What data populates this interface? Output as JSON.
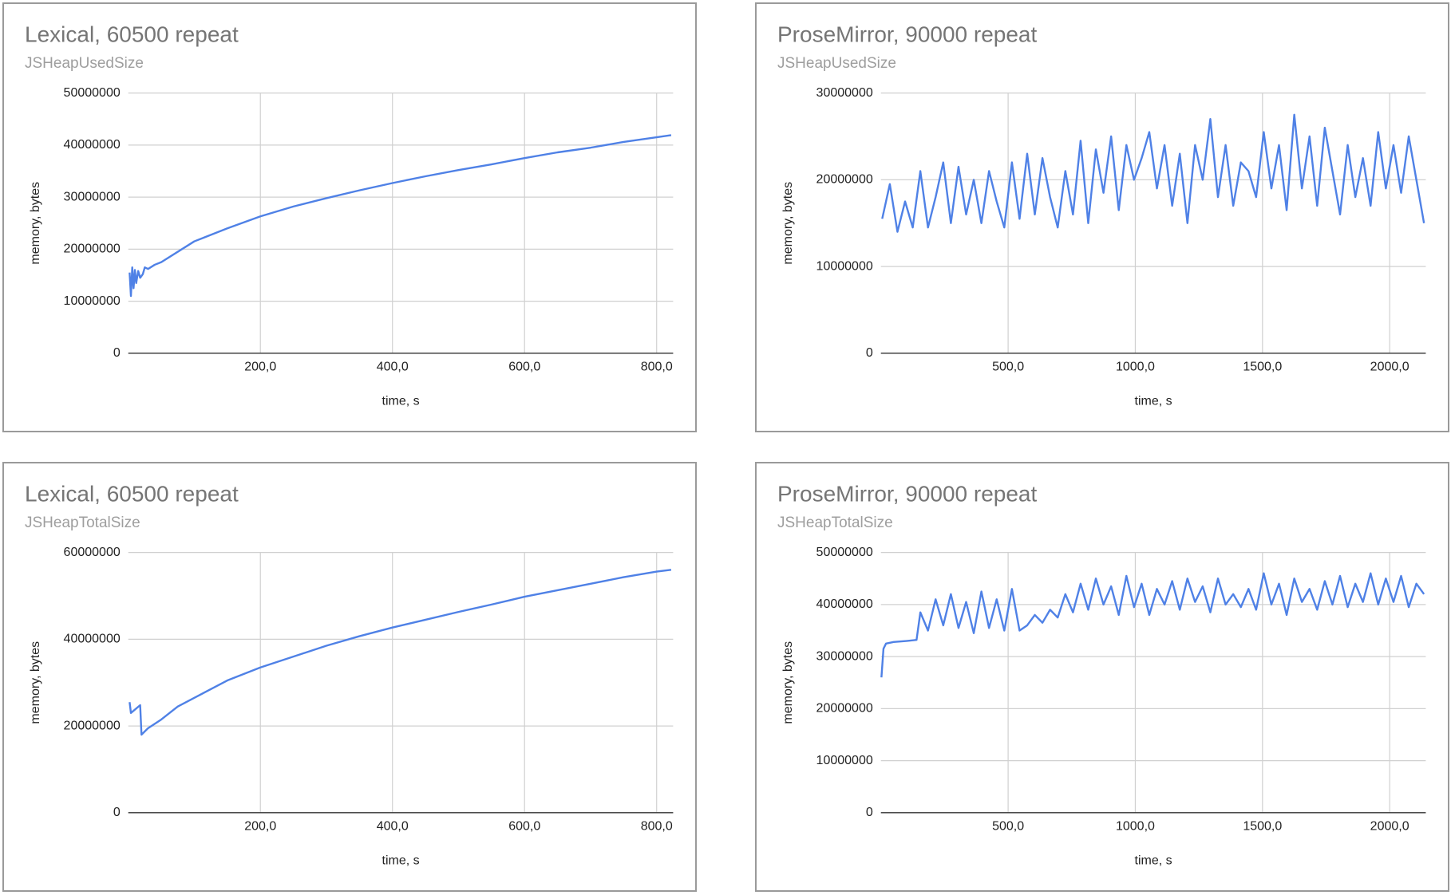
{
  "chart_data": [
    {
      "type": "line",
      "title": "Lexical, 60500 repeat",
      "subtitle": "JSHeapUsedSize",
      "xlabel": "time, s",
      "ylabel": "memory, bytes",
      "color": "#4f81e6",
      "xlim": [
        0,
        825
      ],
      "ylim": [
        0,
        50000000
      ],
      "xticks": [
        {
          "value": 200,
          "label": "200,0"
        },
        {
          "value": 400,
          "label": "400,0"
        },
        {
          "value": 600,
          "label": "600,0"
        },
        {
          "value": 800,
          "label": "800,0"
        }
      ],
      "yticks": [
        0,
        10000000,
        20000000,
        30000000,
        40000000,
        50000000
      ],
      "grid": true,
      "x": [
        2,
        4,
        6,
        8,
        10,
        12,
        15,
        18,
        22,
        25,
        30,
        40,
        50,
        100,
        150,
        200,
        250,
        300,
        350,
        400,
        450,
        500,
        550,
        600,
        650,
        700,
        750,
        800,
        822
      ],
      "values": [
        15500000,
        11000000,
        16500000,
        12500000,
        16000000,
        13500000,
        15800000,
        14500000,
        15200000,
        16500000,
        16200000,
        17000000,
        17500000,
        21500000,
        24000000,
        26300000,
        28200000,
        29800000,
        31300000,
        32700000,
        34000000,
        35200000,
        36300000,
        37500000,
        38600000,
        39500000,
        40600000,
        41500000,
        41900000
      ]
    },
    {
      "type": "line",
      "title": "ProseMirror, 90000 repeat",
      "subtitle": "JSHeapUsedSize",
      "xlabel": "time, s",
      "ylabel": "memory, bytes",
      "color": "#4f81e6",
      "xlim": [
        0,
        2142
      ],
      "ylim": [
        0,
        30000000
      ],
      "xticks": [
        {
          "value": 500,
          "label": "500,0"
        },
        {
          "value": 1000,
          "label": "1000,0"
        },
        {
          "value": 1500,
          "label": "1500,0"
        },
        {
          "value": 2000,
          "label": "2000,0"
        }
      ],
      "yticks": [
        0,
        10000000,
        20000000,
        30000000
      ],
      "grid": true,
      "x": [
        5,
        35,
        65,
        95,
        125,
        155,
        185,
        215,
        245,
        275,
        305,
        335,
        365,
        395,
        425,
        455,
        485,
        515,
        545,
        575,
        605,
        635,
        665,
        695,
        725,
        755,
        785,
        815,
        845,
        875,
        905,
        935,
        965,
        995,
        1025,
        1055,
        1085,
        1115,
        1145,
        1175,
        1205,
        1235,
        1265,
        1295,
        1325,
        1355,
        1385,
        1415,
        1445,
        1475,
        1505,
        1535,
        1565,
        1595,
        1625,
        1655,
        1685,
        1715,
        1745,
        1775,
        1805,
        1835,
        1865,
        1895,
        1925,
        1955,
        1985,
        2015,
        2045,
        2075,
        2105,
        2135
      ],
      "values": [
        15500000,
        19500000,
        14000000,
        17500000,
        14500000,
        21000000,
        14500000,
        18000000,
        22000000,
        15000000,
        21500000,
        16000000,
        20000000,
        15000000,
        21000000,
        17500000,
        14500000,
        22000000,
        15500000,
        23000000,
        16000000,
        22500000,
        18000000,
        14500000,
        21000000,
        16000000,
        24500000,
        15000000,
        23500000,
        18500000,
        25000000,
        16500000,
        24000000,
        20000000,
        22500000,
        25500000,
        19000000,
        24000000,
        17000000,
        23000000,
        15000000,
        24000000,
        20000000,
        27000000,
        18000000,
        24000000,
        17000000,
        22000000,
        21000000,
        18000000,
        25500000,
        19000000,
        24000000,
        16500000,
        27500000,
        19000000,
        25000000,
        17000000,
        26000000,
        21000000,
        16000000,
        24000000,
        18000000,
        22500000,
        17000000,
        25500000,
        19000000,
        24000000,
        18500000,
        25000000,
        20000000,
        15000000
      ]
    },
    {
      "type": "line",
      "title": "Lexical, 60500 repeat",
      "subtitle": "JSHeapTotalSize",
      "xlabel": "time, s",
      "ylabel": "memory, bytes",
      "color": "#4f81e6",
      "xlim": [
        0,
        825
      ],
      "ylim": [
        0,
        60000000
      ],
      "xticks": [
        {
          "value": 200,
          "label": "200,0"
        },
        {
          "value": 400,
          "label": "400,0"
        },
        {
          "value": 600,
          "label": "600,0"
        },
        {
          "value": 800,
          "label": "800,0"
        }
      ],
      "yticks": [
        0,
        20000000,
        40000000,
        60000000
      ],
      "grid": true,
      "x": [
        2,
        4,
        18,
        20,
        30,
        50,
        75,
        100,
        150,
        200,
        250,
        300,
        350,
        400,
        450,
        500,
        550,
        600,
        650,
        700,
        750,
        800,
        822
      ],
      "values": [
        25500000,
        23000000,
        24800000,
        18000000,
        19500000,
        21500000,
        24500000,
        26500000,
        30500000,
        33500000,
        36000000,
        38500000,
        40700000,
        42700000,
        44500000,
        46300000,
        48000000,
        49800000,
        51300000,
        52800000,
        54300000,
        55600000,
        56000000
      ]
    },
    {
      "type": "line",
      "title": "ProseMirror, 90000 repeat",
      "subtitle": "JSHeapTotalSize",
      "xlabel": "time, s",
      "ylabel": "memory, bytes",
      "color": "#4f81e6",
      "xlim": [
        0,
        2142
      ],
      "ylim": [
        0,
        50000000
      ],
      "xticks": [
        {
          "value": 500,
          "label": "500,0"
        },
        {
          "value": 1000,
          "label": "1000,0"
        },
        {
          "value": 1500,
          "label": "1500,0"
        },
        {
          "value": 2000,
          "label": "2000,0"
        }
      ],
      "yticks": [
        0,
        10000000,
        20000000,
        30000000,
        40000000,
        50000000
      ],
      "grid": true,
      "x": [
        2,
        10,
        20,
        50,
        100,
        140,
        155,
        185,
        215,
        245,
        275,
        305,
        335,
        365,
        395,
        425,
        455,
        485,
        515,
        545,
        575,
        605,
        635,
        665,
        695,
        725,
        755,
        785,
        815,
        845,
        875,
        905,
        935,
        965,
        995,
        1025,
        1055,
        1085,
        1115,
        1145,
        1175,
        1205,
        1235,
        1265,
        1295,
        1325,
        1355,
        1385,
        1415,
        1445,
        1475,
        1505,
        1535,
        1565,
        1595,
        1625,
        1655,
        1685,
        1715,
        1745,
        1775,
        1805,
        1835,
        1865,
        1895,
        1925,
        1955,
        1985,
        2015,
        2045,
        2075,
        2105,
        2135
      ],
      "values": [
        26000000,
        31500000,
        32500000,
        32800000,
        33000000,
        33200000,
        38500000,
        35000000,
        41000000,
        36000000,
        42000000,
        35500000,
        40500000,
        34500000,
        42500000,
        35500000,
        41000000,
        35000000,
        43000000,
        35000000,
        36000000,
        38000000,
        36500000,
        39000000,
        37500000,
        42000000,
        38500000,
        44000000,
        39000000,
        45000000,
        40000000,
        43500000,
        38000000,
        45500000,
        39500000,
        44000000,
        38000000,
        43000000,
        40000000,
        44500000,
        39000000,
        45000000,
        40500000,
        43500000,
        38500000,
        45000000,
        40000000,
        42000000,
        39500000,
        43000000,
        39000000,
        46000000,
        40000000,
        44000000,
        38000000,
        45000000,
        40500000,
        43000000,
        39000000,
        44500000,
        40000000,
        45500000,
        39500000,
        44000000,
        40500000,
        46000000,
        40000000,
        45000000,
        40500000,
        45500000,
        39500000,
        44000000,
        42000000
      ]
    }
  ]
}
